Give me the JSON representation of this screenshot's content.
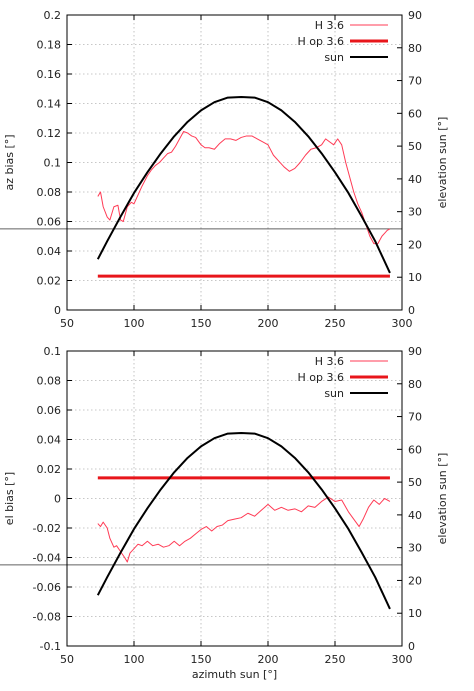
{
  "colors": {
    "h36": "#ff3b55",
    "hop36": "#e8161b",
    "sun": "#000000",
    "reference_line": "#606060",
    "grid": "#b5b5b5"
  },
  "chart_data": [
    {
      "type": "line",
      "title": "",
      "xlabel": "",
      "ylabel": "az bias [°]",
      "y2label": "elevation sun [°]",
      "xlim": [
        50,
        300
      ],
      "ylim": [
        0,
        0.2
      ],
      "y2lim": [
        0,
        90
      ],
      "grid": true,
      "legend_position": "top-right",
      "x_ticks": [
        "50",
        "100",
        "150",
        "200",
        "250",
        "300"
      ],
      "y_ticks": [
        "0",
        "0.02",
        "0.04",
        "0.06",
        "0.08",
        "0.1",
        "0.12",
        "0.14",
        "0.16",
        "0.18",
        "0.2"
      ],
      "y2_ticks": [
        "0",
        "10",
        "20",
        "30",
        "40",
        "50",
        "60",
        "70",
        "80",
        "90"
      ],
      "reference_line": {
        "axis": "y",
        "value": 0.055
      },
      "series": [
        {
          "name": "H 3.6",
          "axis": "left",
          "x": [
            73,
            75,
            77,
            80,
            82,
            85,
            88,
            90,
            92,
            95,
            98,
            100,
            103,
            106,
            110,
            113,
            116,
            119,
            122,
            125,
            128,
            131,
            134,
            137,
            140,
            143,
            146,
            150,
            153,
            156,
            160,
            164,
            168,
            172,
            176,
            180,
            184,
            188,
            192,
            196,
            200,
            204,
            208,
            212,
            216,
            220,
            224,
            228,
            232,
            236,
            240,
            243,
            246,
            249,
            252,
            255,
            258,
            261,
            264,
            267,
            270,
            273,
            276,
            279,
            282,
            285,
            287,
            289,
            291
          ],
          "values": [
            0.077,
            0.08,
            0.07,
            0.063,
            0.061,
            0.07,
            0.071,
            0.061,
            0.06,
            0.07,
            0.073,
            0.072,
            0.078,
            0.084,
            0.091,
            0.095,
            0.098,
            0.1,
            0.103,
            0.106,
            0.107,
            0.111,
            0.116,
            0.121,
            0.12,
            0.118,
            0.117,
            0.112,
            0.11,
            0.11,
            0.109,
            0.113,
            0.116,
            0.116,
            0.115,
            0.117,
            0.118,
            0.118,
            0.116,
            0.114,
            0.112,
            0.105,
            0.101,
            0.097,
            0.094,
            0.096,
            0.1,
            0.105,
            0.109,
            0.11,
            0.112,
            0.116,
            0.114,
            0.112,
            0.116,
            0.112,
            0.1,
            0.09,
            0.08,
            0.072,
            0.066,
            0.058,
            0.05,
            0.045,
            0.045,
            0.05,
            0.052,
            0.054,
            0.055
          ]
        },
        {
          "name": "H op 3.6",
          "axis": "left",
          "x": [
            73,
            291
          ],
          "values": [
            0.023,
            0.023
          ]
        },
        {
          "name": "sun",
          "axis": "right",
          "x": [
            73,
            80,
            90,
            100,
            110,
            120,
            130,
            140,
            150,
            160,
            170,
            180,
            190,
            200,
            210,
            220,
            230,
            240,
            250,
            260,
            270,
            280,
            291
          ],
          "values": [
            15.5,
            21.0,
            28.5,
            35.7,
            42.0,
            47.8,
            53.0,
            57.4,
            60.9,
            63.4,
            64.8,
            65.0,
            64.8,
            63.4,
            60.9,
            57.4,
            53.0,
            47.8,
            42.0,
            35.7,
            28.5,
            21.0,
            11.3
          ]
        }
      ]
    },
    {
      "type": "line",
      "title": "",
      "xlabel": "azimuth sun [°]",
      "ylabel": "el bias [°]",
      "y2label": "elevation sun [°]",
      "xlim": [
        50,
        300
      ],
      "ylim": [
        -0.1,
        0.1
      ],
      "y2lim": [
        0,
        90
      ],
      "grid": true,
      "legend_position": "top-right",
      "x_ticks": [
        "50",
        "100",
        "150",
        "200",
        "250",
        "300"
      ],
      "y_ticks": [
        "-0.1",
        "-0.08",
        "-0.06",
        "-0.04",
        "-0.02",
        "0",
        "0.02",
        "0.04",
        "0.06",
        "0.08",
        "0.1"
      ],
      "y2_ticks": [
        "0",
        "10",
        "20",
        "30",
        "40",
        "50",
        "60",
        "70",
        "80",
        "90"
      ],
      "reference_line": {
        "axis": "y",
        "value": -0.045
      },
      "series": [
        {
          "name": "H 3.6",
          "axis": "left",
          "x": [
            73,
            75,
            77,
            80,
            82,
            85,
            87,
            90,
            93,
            95,
            97,
            100,
            103,
            106,
            110,
            114,
            118,
            122,
            126,
            130,
            134,
            138,
            142,
            146,
            150,
            154,
            158,
            162,
            166,
            170,
            175,
            180,
            185,
            190,
            195,
            200,
            205,
            210,
            215,
            220,
            225,
            230,
            235,
            240,
            245,
            250,
            255,
            260,
            264,
            268,
            271,
            275,
            279,
            283,
            287,
            291
          ],
          "values": [
            -0.017,
            -0.019,
            -0.016,
            -0.02,
            -0.027,
            -0.033,
            -0.032,
            -0.036,
            -0.04,
            -0.043,
            -0.037,
            -0.034,
            -0.031,
            -0.032,
            -0.029,
            -0.032,
            -0.031,
            -0.033,
            -0.032,
            -0.029,
            -0.032,
            -0.029,
            -0.027,
            -0.024,
            -0.021,
            -0.019,
            -0.022,
            -0.019,
            -0.018,
            -0.015,
            -0.014,
            -0.013,
            -0.01,
            -0.012,
            -0.008,
            -0.004,
            -0.008,
            -0.006,
            -0.008,
            -0.007,
            -0.009,
            -0.005,
            -0.006,
            -0.002,
            0.001,
            -0.002,
            -0.001,
            -0.009,
            -0.014,
            -0.019,
            -0.014,
            -0.006,
            -0.001,
            -0.004,
            0.0,
            -0.002
          ]
        },
        {
          "name": "H op 3.6",
          "axis": "left",
          "x": [
            73,
            291
          ],
          "values": [
            0.014,
            0.014
          ]
        },
        {
          "name": "sun",
          "axis": "right",
          "x": [
            73,
            80,
            90,
            100,
            110,
            120,
            130,
            140,
            150,
            160,
            170,
            180,
            190,
            200,
            210,
            220,
            230,
            240,
            250,
            260,
            270,
            280,
            291
          ],
          "values": [
            15.5,
            21.0,
            28.5,
            35.7,
            42.0,
            47.8,
            53.0,
            57.4,
            60.9,
            63.4,
            64.8,
            65.0,
            64.8,
            63.4,
            60.9,
            57.4,
            53.0,
            47.8,
            42.0,
            35.7,
            28.5,
            21.0,
            11.3
          ]
        }
      ]
    }
  ]
}
